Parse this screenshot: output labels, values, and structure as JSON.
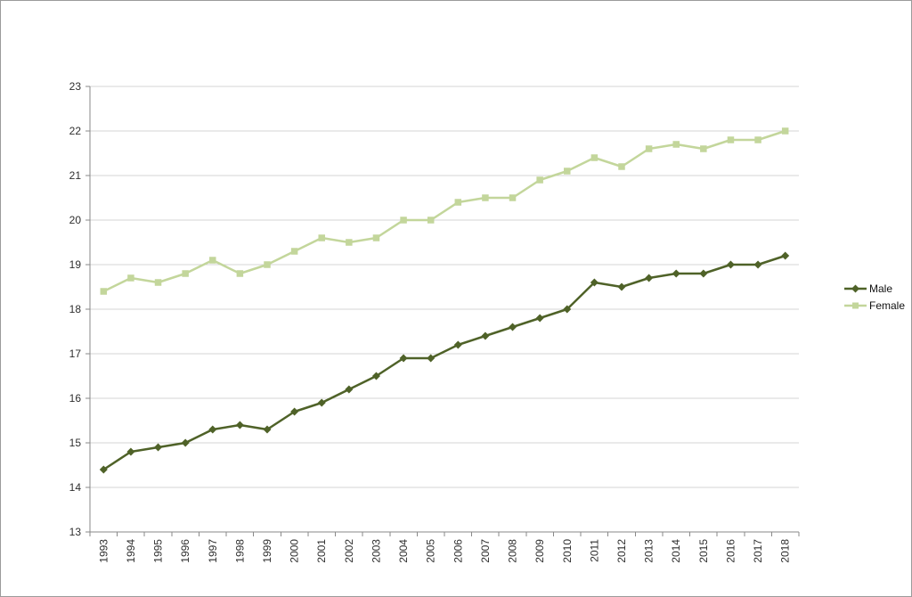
{
  "chart_data": {
    "type": "line",
    "title": "",
    "xlabel": "",
    "ylabel": "",
    "categories": [
      "1993",
      "1994",
      "1995",
      "1996",
      "1997",
      "1998",
      "1999",
      "2000",
      "2001",
      "2002",
      "2003",
      "2004",
      "2005",
      "2006",
      "2007",
      "2008",
      "2009",
      "2010",
      "2011",
      "2012",
      "2013",
      "2014",
      "2015",
      "2016",
      "2017",
      "2018"
    ],
    "series": [
      {
        "name": "Male",
        "color": "#4f6228",
        "marker": "diamond",
        "values": [
          14.4,
          14.8,
          14.9,
          15.0,
          15.3,
          15.4,
          15.3,
          15.7,
          15.9,
          16.2,
          16.5,
          16.9,
          16.9,
          17.2,
          17.4,
          17.6,
          17.8,
          18.0,
          18.6,
          18.5,
          18.7,
          18.8,
          18.8,
          19.0,
          19.0,
          19.2
        ]
      },
      {
        "name": "Female",
        "color": "#c3d69b",
        "marker": "square",
        "values": [
          18.4,
          18.7,
          18.6,
          18.8,
          19.1,
          18.8,
          19.0,
          19.3,
          19.6,
          19.5,
          19.6,
          20.0,
          20.0,
          20.4,
          20.5,
          20.5,
          20.9,
          21.1,
          21.4,
          21.2,
          21.6,
          21.7,
          21.6,
          21.8,
          21.8,
          22.0
        ]
      }
    ],
    "ylim": [
      13,
      23
    ],
    "y_ticks": [
      13,
      14,
      15,
      16,
      17,
      18,
      19,
      20,
      21,
      22,
      23
    ],
    "grid": "horizontal",
    "legend_position": "right"
  },
  "colors": {
    "gridline": "#d4d4d4",
    "axis": "#898989",
    "tick_label": "#2e2e2e"
  }
}
